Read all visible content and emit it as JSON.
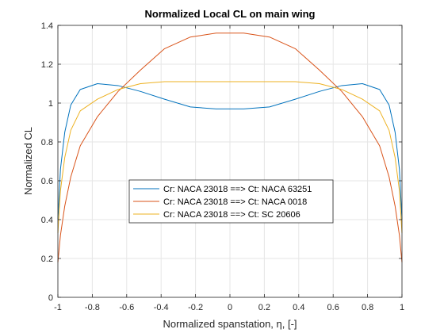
{
  "chart_data": {
    "type": "line",
    "title": "Normalized Local CL on main wing",
    "xlabel": "Normalized spanstation, η, [-]",
    "ylabel": "Normalized CL",
    "xlim": [
      -1,
      1
    ],
    "ylim": [
      0,
      1.4
    ],
    "xticks": [
      "-1",
      "-0.8",
      "-0.6",
      "-0.4",
      "-0.2",
      "0",
      "0.2",
      "0.4",
      "0.6",
      "0.8",
      "1"
    ],
    "yticks": [
      "0",
      "0.2",
      "0.4",
      "0.6",
      "0.8",
      "1",
      "1.2",
      "1.4"
    ],
    "grid": true,
    "legend_position": "center-bottom",
    "series": [
      {
        "name": "Cr: NACA 23018 ==> Ct: NACA 63251",
        "color": "#0072BD",
        "x": [
          -1,
          -0.985,
          -0.96,
          -0.925,
          -0.87,
          -0.77,
          -0.65,
          -0.52,
          -0.38,
          -0.23,
          -0.08,
          0.08,
          0.23,
          0.38,
          0.52,
          0.65,
          0.77,
          0.87,
          0.925,
          0.96,
          0.985,
          1
        ],
        "y": [
          0.4,
          0.66,
          0.85,
          0.99,
          1.07,
          1.1,
          1.09,
          1.06,
          1.02,
          0.98,
          0.97,
          0.97,
          0.98,
          1.02,
          1.06,
          1.09,
          1.1,
          1.07,
          0.99,
          0.85,
          0.66,
          0.4
        ]
      },
      {
        "name": "Cr: NACA 23018 ==> Ct: NACA 0018",
        "color": "#D95319",
        "x": [
          -1,
          -0.985,
          -0.96,
          -0.925,
          -0.87,
          -0.77,
          -0.65,
          -0.52,
          -0.38,
          -0.23,
          -0.08,
          0.08,
          0.23,
          0.38,
          0.52,
          0.65,
          0.77,
          0.87,
          0.925,
          0.96,
          0.985,
          1
        ],
        "y": [
          0.18,
          0.32,
          0.47,
          0.62,
          0.78,
          0.93,
          1.06,
          1.17,
          1.28,
          1.34,
          1.36,
          1.36,
          1.34,
          1.28,
          1.17,
          1.06,
          0.93,
          0.78,
          0.62,
          0.47,
          0.32,
          0.18
        ]
      },
      {
        "name": "Cr: NACA 23018 ==> Ct: SC 20606",
        "color": "#EDB120",
        "x": [
          -1,
          -0.985,
          -0.96,
          -0.925,
          -0.87,
          -0.77,
          -0.65,
          -0.52,
          -0.38,
          -0.23,
          -0.08,
          0.08,
          0.23,
          0.38,
          0.52,
          0.65,
          0.77,
          0.87,
          0.925,
          0.96,
          0.985,
          1
        ],
        "y": [
          0.33,
          0.55,
          0.72,
          0.86,
          0.96,
          1.02,
          1.07,
          1.1,
          1.11,
          1.11,
          1.11,
          1.11,
          1.11,
          1.11,
          1.1,
          1.07,
          1.02,
          0.96,
          0.86,
          0.72,
          0.55,
          0.33
        ]
      }
    ]
  }
}
